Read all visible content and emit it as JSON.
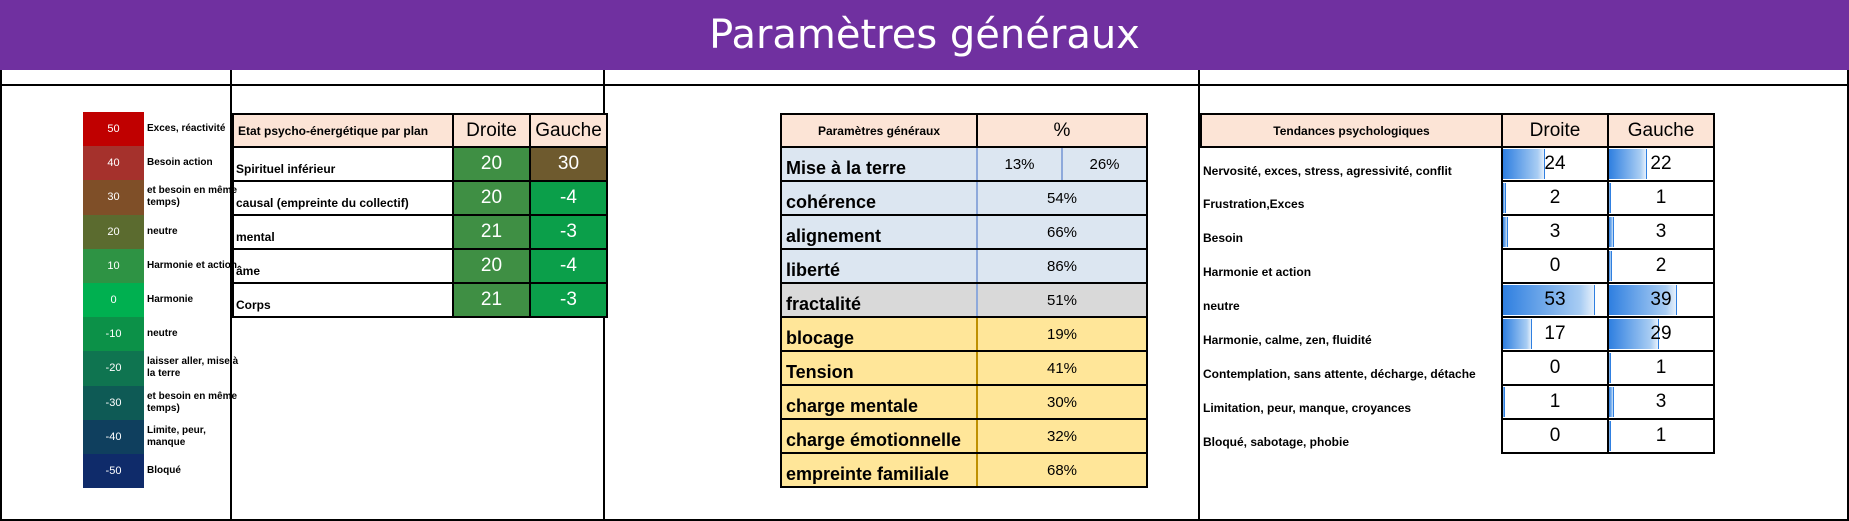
{
  "title": "Paramètres généraux",
  "legend": [
    {
      "value": "50",
      "label": "Exces, réactivité",
      "color": "#c00000"
    },
    {
      "value": "40",
      "label": "Besoin action",
      "color": "#a5312c"
    },
    {
      "value": "30",
      "label": "et besoin en même temps)",
      "color": "#7f4f28"
    },
    {
      "value": "20",
      "label": "neutre",
      "color": "#5b6b2f"
    },
    {
      "value": "10",
      "label": "Harmonie et action",
      "color": "#2e9344"
    },
    {
      "value": "0",
      "label": "Harmonie",
      "color": "#00b050"
    },
    {
      "value": "-10",
      "label": "neutre",
      "color": "#0c9148"
    },
    {
      "value": "-20",
      "label": "laisser aller, mise à la terre",
      "color": "#0f7450"
    },
    {
      "value": "-30",
      "label": "et besoin en même temps)",
      "color": "#0e5a55"
    },
    {
      "value": "-40",
      "label": "Limite, peur, manque",
      "color": "#0f3f5e"
    },
    {
      "value": "-50",
      "label": "Bloqué",
      "color": "#0f2b6a"
    }
  ],
  "etat": {
    "header": "Etat psycho-énergétique par plan",
    "col_droite": "Droite",
    "col_gauche": "Gauche",
    "rows": [
      {
        "label": "Spirituel inférieur",
        "droite": "20",
        "gauche": "30",
        "droite_color": "#3f8f44",
        "gauche_color": "#6e5a2e"
      },
      {
        "label": "causal (empreinte du collectif)",
        "droite": "20",
        "gauche": "-4",
        "droite_color": "#3f8f44",
        "gauche_color": "#0b9f4a"
      },
      {
        "label": "mental",
        "droite": "21",
        "gauche": "-3",
        "droite_color": "#3f8f44",
        "gauche_color": "#0b9f4a"
      },
      {
        "label": "âme",
        "droite": "20",
        "gauche": "-4",
        "droite_color": "#3f8f44",
        "gauche_color": "#0b9f4a"
      },
      {
        "label": "Corps",
        "droite": "21",
        "gauche": "-3",
        "droite_color": "#3f8f44",
        "gauche_color": "#0b9f4a"
      }
    ]
  },
  "params": {
    "header": "Paramètres généraux",
    "col_pct": "%",
    "mise": {
      "label": "Mise à la terre",
      "left": "13%",
      "right": "26%"
    },
    "rows": [
      {
        "label": "cohérence",
        "value": "54%",
        "group": "blue"
      },
      {
        "label": "alignement",
        "value": "66%",
        "group": "blue"
      },
      {
        "label": "liberté",
        "value": "86%",
        "group": "blue"
      },
      {
        "label": "fractalité",
        "value": "51%",
        "group": "grey"
      },
      {
        "label": "blocage",
        "value": "19%",
        "group": "yellow"
      },
      {
        "label": "Tension",
        "value": "41%",
        "group": "yellow"
      },
      {
        "label": "charge mentale",
        "value": "30%",
        "group": "yellow"
      },
      {
        "label": "charge émotionnelle",
        "value": "32%",
        "group": "yellow"
      },
      {
        "label": "empreinte familiale",
        "value": "68%",
        "group": "yellow"
      }
    ]
  },
  "tendances": {
    "header": "Tendances psychologiques",
    "col_droite": "Droite",
    "col_gauche": "Gauche",
    "bar_max": 60,
    "rows": [
      {
        "label": "Nervosité, exces, stress, agressivité, conflit",
        "droite": 24,
        "gauche": 22
      },
      {
        "label": "Frustration,Exces",
        "droite": 2,
        "gauche": 1
      },
      {
        "label": "Besoin",
        "droite": 3,
        "gauche": 3
      },
      {
        "label": "Harmonie et action",
        "droite": 0,
        "gauche": 2
      },
      {
        "label": "neutre",
        "droite": 53,
        "gauche": 39
      },
      {
        "label": "Harmonie, calme, zen, fluidité",
        "droite": 17,
        "gauche": 29
      },
      {
        "label": "Contemplation, sans attente, décharge, détache",
        "droite": 0,
        "gauche": 1
      },
      {
        "label": "Limitation, peur, manque, croyances",
        "droite": 1,
        "gauche": 3
      },
      {
        "label": "Bloqué, sabotage, phobie",
        "droite": 0,
        "gauche": 1
      }
    ]
  }
}
